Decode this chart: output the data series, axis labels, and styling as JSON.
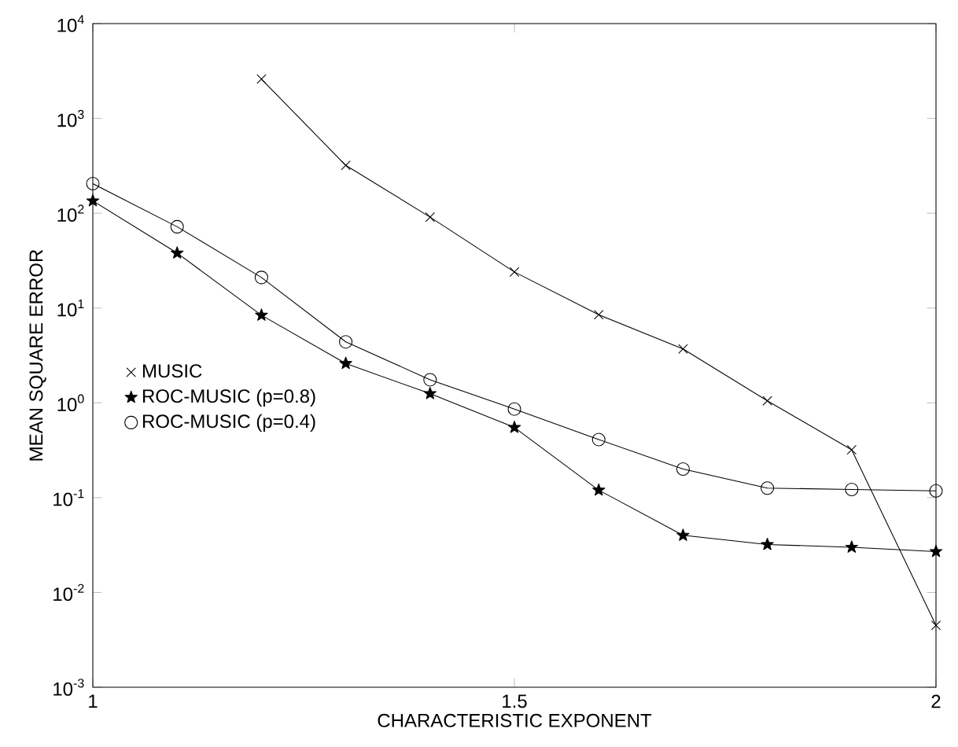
{
  "chart_data": {
    "type": "line",
    "xlabel": "CHARACTERISTIC EXPONENT",
    "ylabel": "MEAN SQUARE ERROR",
    "log": "y",
    "x": [
      1.0,
      1.1,
      1.2,
      1.3,
      1.4,
      1.5,
      1.6,
      1.7,
      1.8,
      1.9,
      2.0
    ],
    "series": [
      {
        "name": "MUSIC",
        "color": "#000000",
        "marker": "cross",
        "values": [
          null,
          null,
          2600,
          320,
          91,
          24,
          8.5,
          3.7,
          1.05,
          0.32,
          0.0045
        ]
      },
      {
        "name": "ROC-MUSIC (p=0.8)",
        "color": "#000000",
        "marker": "star",
        "values": [
          135,
          38,
          8.4,
          2.6,
          1.25,
          0.55,
          0.12,
          0.04,
          0.032,
          0.03,
          0.027
        ]
      },
      {
        "name": "ROC-MUSIC (p=0.4)",
        "color": "#000000",
        "marker": "circle",
        "values": [
          205,
          72,
          21,
          4.4,
          1.75,
          0.86,
          0.41,
          0.2,
          0.126,
          0.122,
          0.118
        ]
      }
    ],
    "line_style": "solid",
    "legend": "left",
    "grid": false,
    "xlim": [
      1,
      2
    ],
    "xticks": [
      1,
      1.5,
      2
    ],
    "ylim": [
      0.001,
      10000
    ],
    "yticks": [
      {
        "value": 0.001,
        "label": "10$^{-3}$"
      },
      {
        "value": 0.01,
        "label": "10$^{-2}$"
      },
      {
        "value": 0.1,
        "label": "10$^{-1}$"
      },
      {
        "value": 1,
        "label": "10$^{0}$"
      },
      {
        "value": 10,
        "label": "10$^{1}$"
      },
      {
        "value": 100,
        "label": "10$^{2}$"
      },
      {
        "value": 1000,
        "label": "10$^{3}$"
      },
      {
        "value": 10000,
        "label": "10$^{4}$"
      }
    ]
  }
}
